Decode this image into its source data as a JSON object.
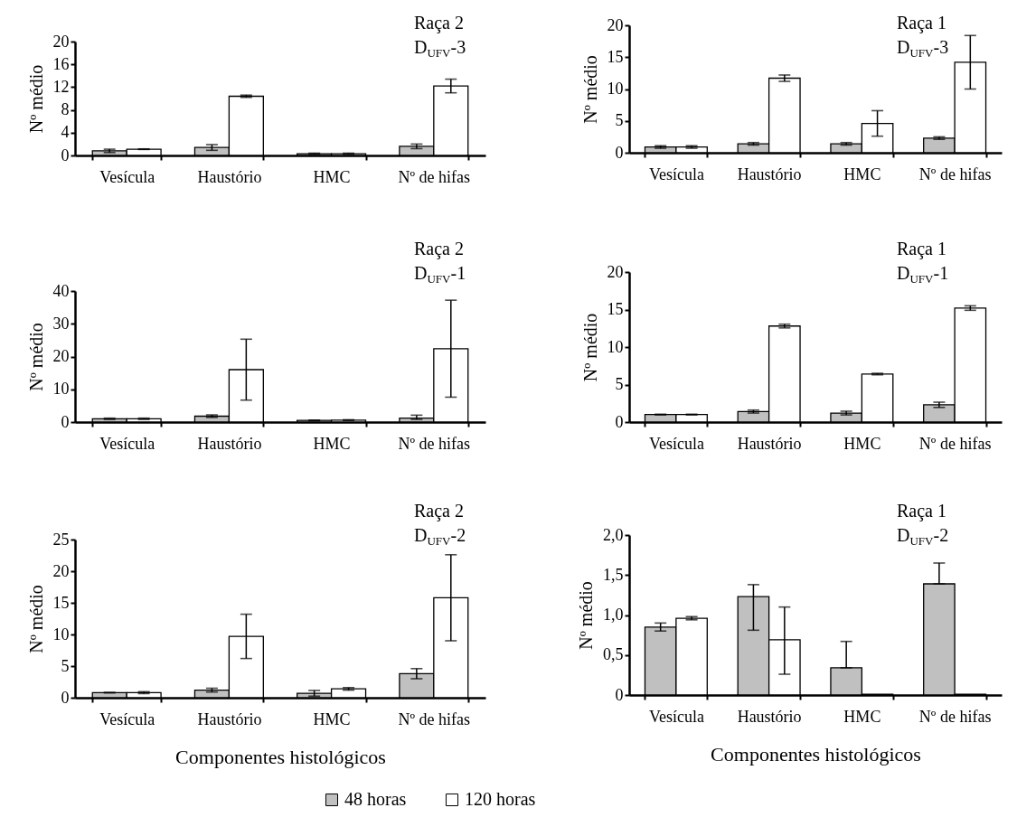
{
  "chart_data": [
    {
      "type": "bar",
      "title": "Raça 2",
      "subtitle": "D$_{UFV}$-3",
      "ylabel": "Nº médio",
      "categories": [
        "Vesícula",
        "Haustório",
        "HMC",
        "Nº de hifas"
      ],
      "ylim": [
        0,
        20
      ],
      "yticks": [
        0,
        4,
        8,
        12,
        16,
        20
      ],
      "legend": false,
      "series": [
        {
          "color": "#c0c0c0",
          "values": [
            0.8,
            1.4,
            0.3,
            1.6
          ],
          "errors": [
            0.3,
            0.5,
            0.1,
            0.4
          ]
        },
        {
          "color": "#ffffff",
          "values": [
            1.1,
            10.4,
            0.3,
            12.2
          ],
          "errors": [
            0.05,
            0.2,
            0.1,
            1.2
          ]
        }
      ]
    },
    {
      "type": "bar",
      "title": "Raça 1",
      "subtitle": "D$_{UFV}$-3",
      "ylabel": "Nº médio",
      "categories": [
        "Vesícula",
        "Haustório",
        "HMC",
        "Nº de hifas"
      ],
      "ylim": [
        0,
        20
      ],
      "yticks": [
        0,
        5,
        10,
        15,
        20
      ],
      "legend": false,
      "series": [
        {
          "color": "#c0c0c0",
          "values": [
            0.9,
            1.4,
            1.4,
            2.3
          ],
          "errors": [
            0.2,
            0.2,
            0.2,
            0.2
          ]
        },
        {
          "color": "#ffffff",
          "values": [
            0.9,
            11.7,
            4.6,
            14.2
          ],
          "errors": [
            0.2,
            0.5,
            2,
            4.2
          ]
        }
      ]
    },
    {
      "type": "bar",
      "title": "Raça 2",
      "subtitle": "D$_{UFV}$-1",
      "ylabel": "Nº médio",
      "categories": [
        "Vesícula",
        "Haustório",
        "HMC",
        "Nº de hifas"
      ],
      "ylim": [
        0,
        40
      ],
      "yticks": [
        0,
        10,
        20,
        30,
        40
      ],
      "legend": false,
      "series": [
        {
          "color": "#c0c0c0",
          "values": [
            1.0,
            1.8,
            0.5,
            1.2
          ],
          "errors": [
            0.2,
            0.4,
            0.1,
            [
              0.8,
              2.1
            ]
          ]
        },
        {
          "color": "#ffffff",
          "values": [
            1.0,
            16.0,
            0.6,
            22.4
          ],
          "errors": [
            0.2,
            9.3,
            0.1,
            14.8
          ]
        }
      ]
    },
    {
      "type": "bar",
      "title": "Raça 1",
      "subtitle": "D$_{UFV}$-1",
      "ylabel": "Nº médio",
      "categories": [
        "Vesícula",
        "Haustório",
        "HMC",
        "Nº de hifas"
      ],
      "ylim": [
        0,
        20
      ],
      "yticks": [
        0,
        5,
        10,
        15,
        20
      ],
      "legend": false,
      "series": [
        {
          "color": "#c0c0c0",
          "values": [
            1.0,
            1.4,
            1.2,
            2.3
          ],
          "errors": [
            0.05,
            0.2,
            0.25,
            0.35
          ]
        },
        {
          "color": "#ffffff",
          "values": [
            1.0,
            12.8,
            6.4,
            15.2
          ],
          "errors": [
            0.05,
            0.25,
            0.1,
            0.3
          ]
        }
      ]
    },
    {
      "type": "bar",
      "title": "Raça 2",
      "subtitle": "D$_{UFV}$-2",
      "xlabel": "Componentes histológicos",
      "ylabel": "Nº médio",
      "categories": [
        "Vesícula",
        "Haustório",
        "HMC",
        "Nº de hifas"
      ],
      "ylim": [
        0,
        25
      ],
      "yticks": [
        0,
        5,
        10,
        15,
        20,
        25
      ],
      "legend": false,
      "series": [
        {
          "color": "#c0c0c0",
          "values": [
            0.8,
            1.2,
            0.7,
            3.8
          ],
          "errors": [
            0.05,
            0.3,
            0.45,
            0.8
          ]
        },
        {
          "color": "#ffffff",
          "values": [
            0.8,
            9.7,
            1.4,
            15.8
          ],
          "errors": [
            0.15,
            3.5,
            0.2,
            6.8
          ]
        }
      ]
    },
    {
      "type": "bar",
      "title": "Raça 1",
      "subtitle": "D$_{UFV}$-2",
      "xlabel": "Componentes histológicos",
      "ylabel": "Nº médio",
      "categories": [
        "Vesícula",
        "Haustório",
        "HMC",
        "Nº de hifas"
      ],
      "ylim": [
        0,
        2
      ],
      "yticks": [
        0,
        {
          "value": 0.5,
          "label": "0,5"
        },
        {
          "value": 1,
          "label": "1,0"
        },
        {
          "value": 1.5,
          "label": "1,5"
        },
        {
          "value": 2,
          "label": "2,0"
        }
      ],
      "legend": "bottom",
      "series": [
        {
          "name": "48 horas",
          "color": "#c0c0c0",
          "values": [
            0.85,
            1.23,
            0.34,
            1.39
          ],
          "errors": [
            0.05,
            [
              0.81,
              1.38
            ],
            [
              0.34,
              0.67
            ],
            [
              1.39,
              1.65
            ]
          ]
        },
        {
          "name": "120 horas",
          "color": "#ffffff",
          "values": [
            0.96,
            0.69,
            0.01,
            0.01
          ],
          "errors": [
            0.02,
            [
              0.26,
              1.1
            ],
            null,
            null
          ]
        }
      ]
    }
  ]
}
